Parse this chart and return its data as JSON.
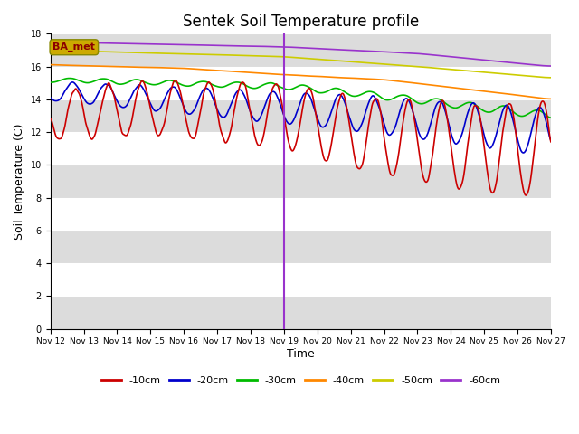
{
  "title": "Sentek Soil Temperature profile",
  "xlabel": "Time",
  "ylabel": "Soil Temperature (C)",
  "ylim": [
    0,
    18
  ],
  "vline_color": "#9933CC",
  "legend_labels": [
    "-10cm",
    "-20cm",
    "-30cm",
    "-40cm",
    "-50cm",
    "-60cm"
  ],
  "legend_colors": [
    "#CC0000",
    "#0000CC",
    "#00BB00",
    "#FF8800",
    "#CCCC00",
    "#9933CC"
  ],
  "ba_met_label": "BA_met",
  "ba_met_bg": "#CCAA00",
  "band_color": "#DCDCDC",
  "title_fontsize": 12,
  "tick_fontsize": 7,
  "axis_label_fontsize": 9
}
